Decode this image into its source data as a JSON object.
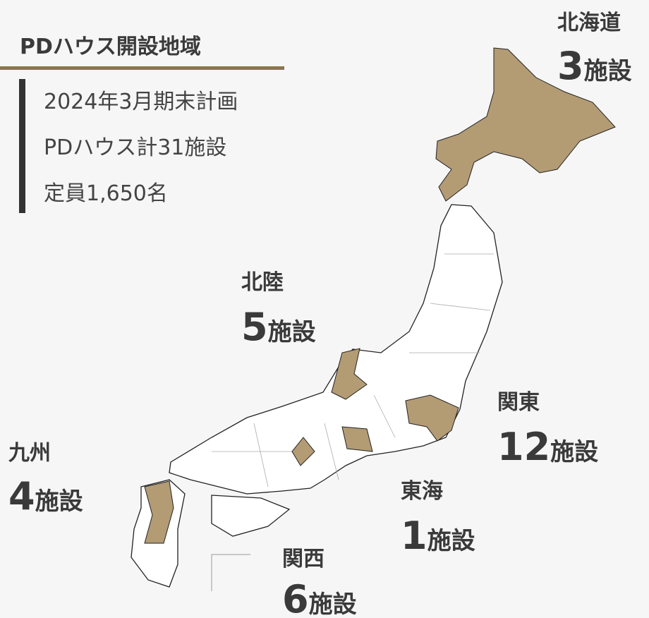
{
  "title": "PDハウス開設地域",
  "summary": [
    "2024年3月期末計画",
    "PDハウス計31施設",
    "定員1,650名"
  ],
  "regions": [
    {
      "name": "北海道",
      "count": 3,
      "unit": "施設"
    },
    {
      "name": "北陸",
      "count": 5,
      "unit": "施設"
    },
    {
      "name": "関東",
      "count": 12,
      "unit": "施設"
    },
    {
      "name": "東海",
      "count": 1,
      "unit": "施設"
    },
    {
      "name": "関西",
      "count": 6,
      "unit": "施設"
    },
    {
      "name": "九州",
      "count": 4,
      "unit": "施設"
    }
  ]
}
